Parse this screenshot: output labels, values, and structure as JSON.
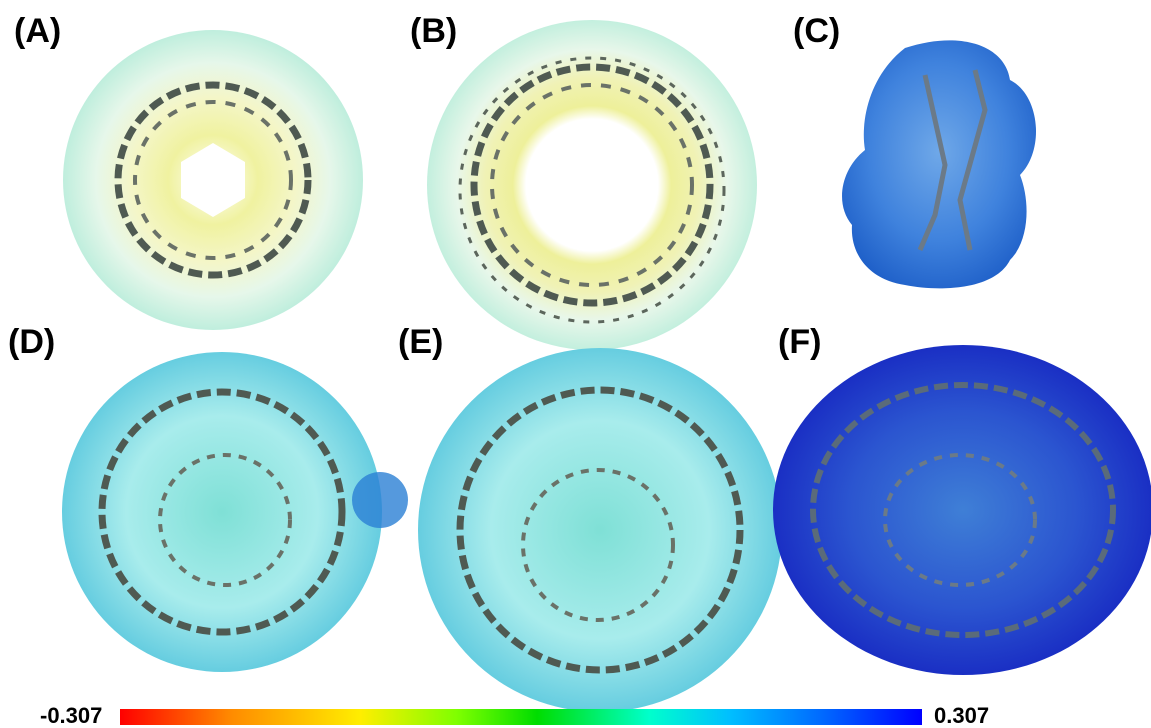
{
  "panels": {
    "A": {
      "label": "(A)"
    },
    "B": {
      "label": "(B)"
    },
    "C": {
      "label": "(C)"
    },
    "D": {
      "label": "(D)"
    },
    "E": {
      "label": "(E)"
    },
    "F": {
      "label": "(F)"
    }
  },
  "colorbar": {
    "min_label": "-0.307",
    "max_label": "0.307",
    "colors": [
      "#ff0000",
      "#ffee00",
      "#00dd00",
      "#00bfff",
      "#0000ff"
    ]
  }
}
